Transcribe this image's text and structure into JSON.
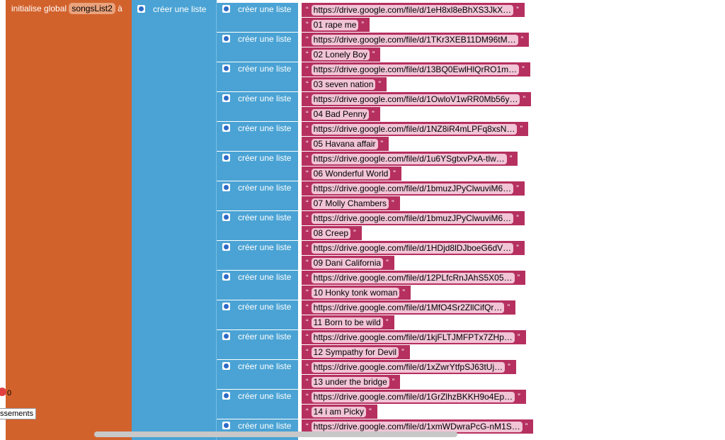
{
  "init_block": {
    "label": "initialise global",
    "variable": "songsList2",
    "to": "à"
  },
  "outer_list": "créer une liste",
  "open_quote": "“",
  "close_quote": "”",
  "items": [
    {
      "label": "créer une liste",
      "url": "https://drive.google.com/file/d/1eH8xl8eBhXS3JkX…",
      "name": "01 rape me"
    },
    {
      "label": "créer une liste",
      "url": "https://drive.google.com/file/d/1TKr3XEB11DM96tM…",
      "name": "02 Lonely Boy"
    },
    {
      "label": "créer une liste",
      "url": "https://drive.google.com/file/d/13BQ0EwlHlQrRO1m…",
      "name": "03 seven nation"
    },
    {
      "label": "créer une liste",
      "url": "https://drive.google.com/file/d/1OwloV1wRR0Mb56y…",
      "name": "04 Bad Penny"
    },
    {
      "label": "créer une liste",
      "url": "https://drive.google.com/file/d/1NZ8iR4mLPFq8xsN…",
      "name": "05 Havana affair"
    },
    {
      "label": "créer une liste",
      "url": "https://drive.google.com/file/d/1u6YSgtxvPxA-tlw…",
      "name": "06 Wonderful World"
    },
    {
      "label": "créer une liste",
      "url": "https://drive.google.com/file/d/1bmuzJPyClwuviM6…",
      "name": "07 Molly Chambers"
    },
    {
      "label": "créer une liste",
      "url": "https://drive.google.com/file/d/1bmuzJPyClwuviM6…",
      "name": "08  Creep"
    },
    {
      "label": "créer une liste",
      "url": "https://drive.google.com/file/d/1HDjd8lDJboeG6dV…",
      "name": "09 Dani California"
    },
    {
      "label": "créer une liste",
      "url": "https://drive.google.com/file/d/12PLfcRnJAhS5X05…",
      "name": "10 Honky tonk woman"
    },
    {
      "label": "créer une liste",
      "url": "https://drive.google.com/file/d/1MfO4Sr2ZllCifQr…",
      "name": "11 Born to be wild"
    },
    {
      "label": "créer une liste",
      "url": "https://drive.google.com/file/d/1kjFLTJMFPTx7ZHp…",
      "name": "12 Sympathy for Devil"
    },
    {
      "label": "créer une liste",
      "url": "https://drive.google.com/file/d/1xZwrYtfpSJ63tUj…",
      "name": "13 under the bridge"
    },
    {
      "label": "créer une liste",
      "url": "https://drive.google.com/file/d/1GrZlhzBKKH9o4Ep…",
      "name": "14 i am Picky"
    },
    {
      "label": "créer une liste",
      "url": "https://drive.google.com/file/d/1xmWDwraPcG-nM1S…"
    }
  ],
  "warnings": {
    "count": "0",
    "label": "ssements"
  }
}
